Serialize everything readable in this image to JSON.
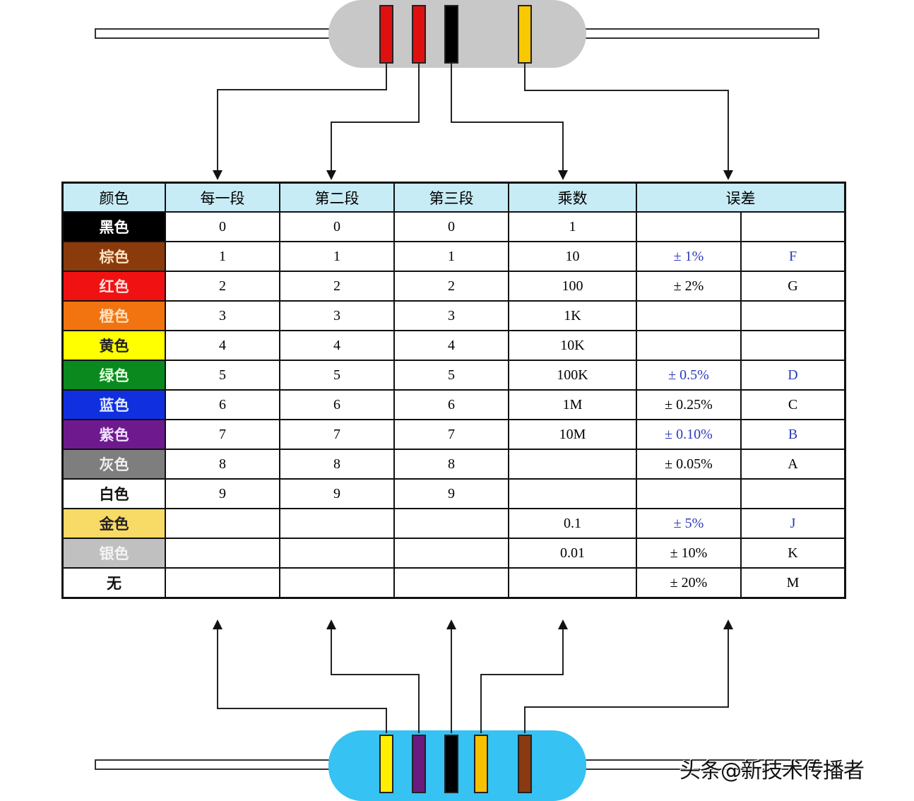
{
  "headers": [
    "颜色",
    "每一段",
    "第二段",
    "第三段",
    "乘数",
    "误差"
  ],
  "rows": [
    {
      "color": "黑色",
      "bg": "#000000",
      "fg": "#ffffff",
      "d1": "0",
      "d2": "0",
      "d3": "0",
      "mult": "1",
      "tol": "",
      "code": "",
      "blue": false
    },
    {
      "color": "棕色",
      "bg": "#8b3a0c",
      "fg": "#ffe0c0",
      "d1": "1",
      "d2": "1",
      "d3": "1",
      "mult": "10",
      "tol": "± 1%",
      "code": "F",
      "blue": true
    },
    {
      "color": "红色",
      "bg": "#f01212",
      "fg": "#ffe0e0",
      "d1": "2",
      "d2": "2",
      "d3": "2",
      "mult": "100",
      "tol": "± 2%",
      "code": "G",
      "blue": false
    },
    {
      "color": "橙色",
      "bg": "#f27410",
      "fg": "#ffe0c0",
      "d1": "3",
      "d2": "3",
      "d3": "3",
      "mult": "1K",
      "tol": "",
      "code": "",
      "blue": false
    },
    {
      "color": "黄色",
      "bg": "#ffff00",
      "fg": "#222222",
      "d1": "4",
      "d2": "4",
      "d3": "4",
      "mult": "10K",
      "tol": "",
      "code": "",
      "blue": false
    },
    {
      "color": "绿色",
      "bg": "#0a8a1e",
      "fg": "#e0ffe0",
      "d1": "5",
      "d2": "5",
      "d3": "5",
      "mult": "100K",
      "tol": "± 0.5%",
      "code": "D",
      "blue": true
    },
    {
      "color": "蓝色",
      "bg": "#1030e0",
      "fg": "#e0e8ff",
      "d1": "6",
      "d2": "6",
      "d3": "6",
      "mult": "1M",
      "tol": "± 0.25%",
      "code": "C",
      "blue": false
    },
    {
      "color": "紫色",
      "bg": "#6e1a8e",
      "fg": "#f0e0ff",
      "d1": "7",
      "d2": "7",
      "d3": "7",
      "mult": "10M",
      "tol": "± 0.10%",
      "code": "B",
      "blue": true
    },
    {
      "color": "灰色",
      "bg": "#7e7e7e",
      "fg": "#f0f0f0",
      "d1": "8",
      "d2": "8",
      "d3": "8",
      "mult": "",
      "tol": "± 0.05%",
      "code": "A",
      "blue": false
    },
    {
      "color": "白色",
      "bg": "#ffffff",
      "fg": "#111111",
      "d1": "9",
      "d2": "9",
      "d3": "9",
      "mult": "",
      "tol": "",
      "code": "",
      "blue": false
    },
    {
      "color": "金色",
      "bg": "#f8da66",
      "fg": "#222222",
      "d1": "",
      "d2": "",
      "d3": "",
      "mult": "0.1",
      "tol": "± 5%",
      "code": "J",
      "blue": true
    },
    {
      "color": "银色",
      "bg": "#c0c0c0",
      "fg": "#f4f4f4",
      "d1": "",
      "d2": "",
      "d3": "",
      "mult": "0.01",
      "tol": "± 10%",
      "code": "K",
      "blue": false
    },
    {
      "color": "无",
      "bg": "#ffffff",
      "fg": "#111111",
      "d1": "",
      "d2": "",
      "d3": "",
      "mult": "",
      "tol": "± 20%",
      "code": "M",
      "blue": false
    }
  ],
  "top_resistor": {
    "body": "#c8c8c8",
    "bands": [
      "#e01010",
      "#e01010",
      "#000000",
      "#f8c800"
    ]
  },
  "bottom_resistor": {
    "body": "#36c2f2",
    "bands": [
      "#ffee00",
      "#6a1a80",
      "#000000",
      "#f8c000",
      "#8a3a10"
    ]
  },
  "watermark": "头条@新技术传播者"
}
